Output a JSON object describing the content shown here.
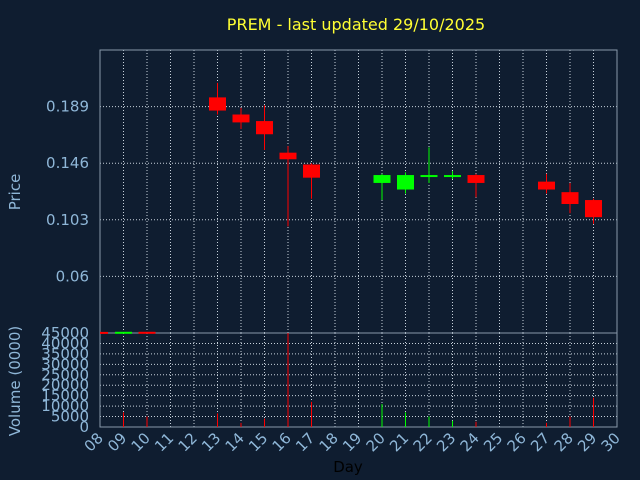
{
  "chart_data": {
    "type": "candlestick",
    "title": "PREM - last updated 29/10/2025",
    "xlabel": "Day",
    "ylabel_price": "Price",
    "ylabel_volume": "Volume (0000)",
    "x_ticks": [
      "08",
      "09",
      "10",
      "11",
      "12",
      "13",
      "14",
      "15",
      "16",
      "17",
      "18",
      "19",
      "20",
      "21",
      "22",
      "23",
      "24",
      "25",
      "26",
      "27",
      "28",
      "29",
      "30"
    ],
    "price_ticks": [
      "0.189",
      "0.146",
      "0.103",
      "0.06"
    ],
    "price_tick_values": [
      0.189,
      0.146,
      0.103,
      0.06
    ],
    "volume_ticks": [
      "45000",
      "40000",
      "35000",
      "30000",
      "25000",
      "20000",
      "15000",
      "10000",
      "5000",
      "0"
    ],
    "volume_tick_values": [
      45000,
      40000,
      35000,
      30000,
      25000,
      20000,
      15000,
      10000,
      5000,
      0
    ],
    "price_ylim": [
      0.017,
      0.232
    ],
    "volume_ylim": [
      0,
      45000
    ],
    "x_range": [
      8,
      30
    ],
    "up_color": "#00ff00",
    "down_color": "#ff0000",
    "candles": [
      {
        "day": 13,
        "open": 0.196,
        "high": 0.207,
        "low": 0.183,
        "close": 0.186,
        "volume": 6500
      },
      {
        "day": 14,
        "open": 0.183,
        "high": 0.188,
        "low": 0.172,
        "close": 0.177,
        "volume": 2000
      },
      {
        "day": 15,
        "open": 0.178,
        "high": 0.19,
        "low": 0.156,
        "close": 0.168,
        "volume": 4000
      },
      {
        "day": 16,
        "open": 0.154,
        "high": 0.159,
        "low": 0.098,
        "close": 0.149,
        "volume": 45000
      },
      {
        "day": 17,
        "open": 0.145,
        "high": 0.146,
        "low": 0.119,
        "close": 0.135,
        "volume": 12000
      },
      {
        "day": 20,
        "open": 0.131,
        "high": 0.138,
        "low": 0.118,
        "close": 0.137,
        "volume": 11000
      },
      {
        "day": 21,
        "open": 0.126,
        "high": 0.139,
        "low": 0.123,
        "close": 0.137,
        "volume": 7000
      },
      {
        "day": 22,
        "open": 0.136,
        "high": 0.158,
        "low": 0.131,
        "close": 0.137,
        "volume": 5000
      },
      {
        "day": 23,
        "open": 0.136,
        "high": 0.14,
        "low": 0.134,
        "close": 0.137,
        "volume": 3000
      },
      {
        "day": 24,
        "open": 0.137,
        "high": 0.138,
        "low": 0.12,
        "close": 0.131,
        "volume": 2500
      },
      {
        "day": 27,
        "open": 0.132,
        "high": 0.138,
        "low": 0.123,
        "close": 0.126,
        "volume": 2000
      },
      {
        "day": 28,
        "open": 0.124,
        "high": 0.131,
        "low": 0.108,
        "close": 0.115,
        "volume": 5000
      },
      {
        "day": 29,
        "open": 0.118,
        "high": 0.119,
        "low": 0.1,
        "close": 0.105,
        "volume": 14000
      }
    ],
    "extra_candles_volume_strip": [
      {
        "day": 8,
        "open": 45050,
        "close": 45000,
        "color": "#ff0000"
      },
      {
        "day": 9,
        "open": 44900,
        "close": 45100,
        "color": "#00ff00"
      },
      {
        "day": 10,
        "open": 45100,
        "close": 44900,
        "color": "#ff0000"
      }
    ],
    "volume_bars_early": [
      {
        "day": 9,
        "volume": 7000
      },
      {
        "day": 10,
        "volume": 5000
      }
    ],
    "grid": true
  }
}
